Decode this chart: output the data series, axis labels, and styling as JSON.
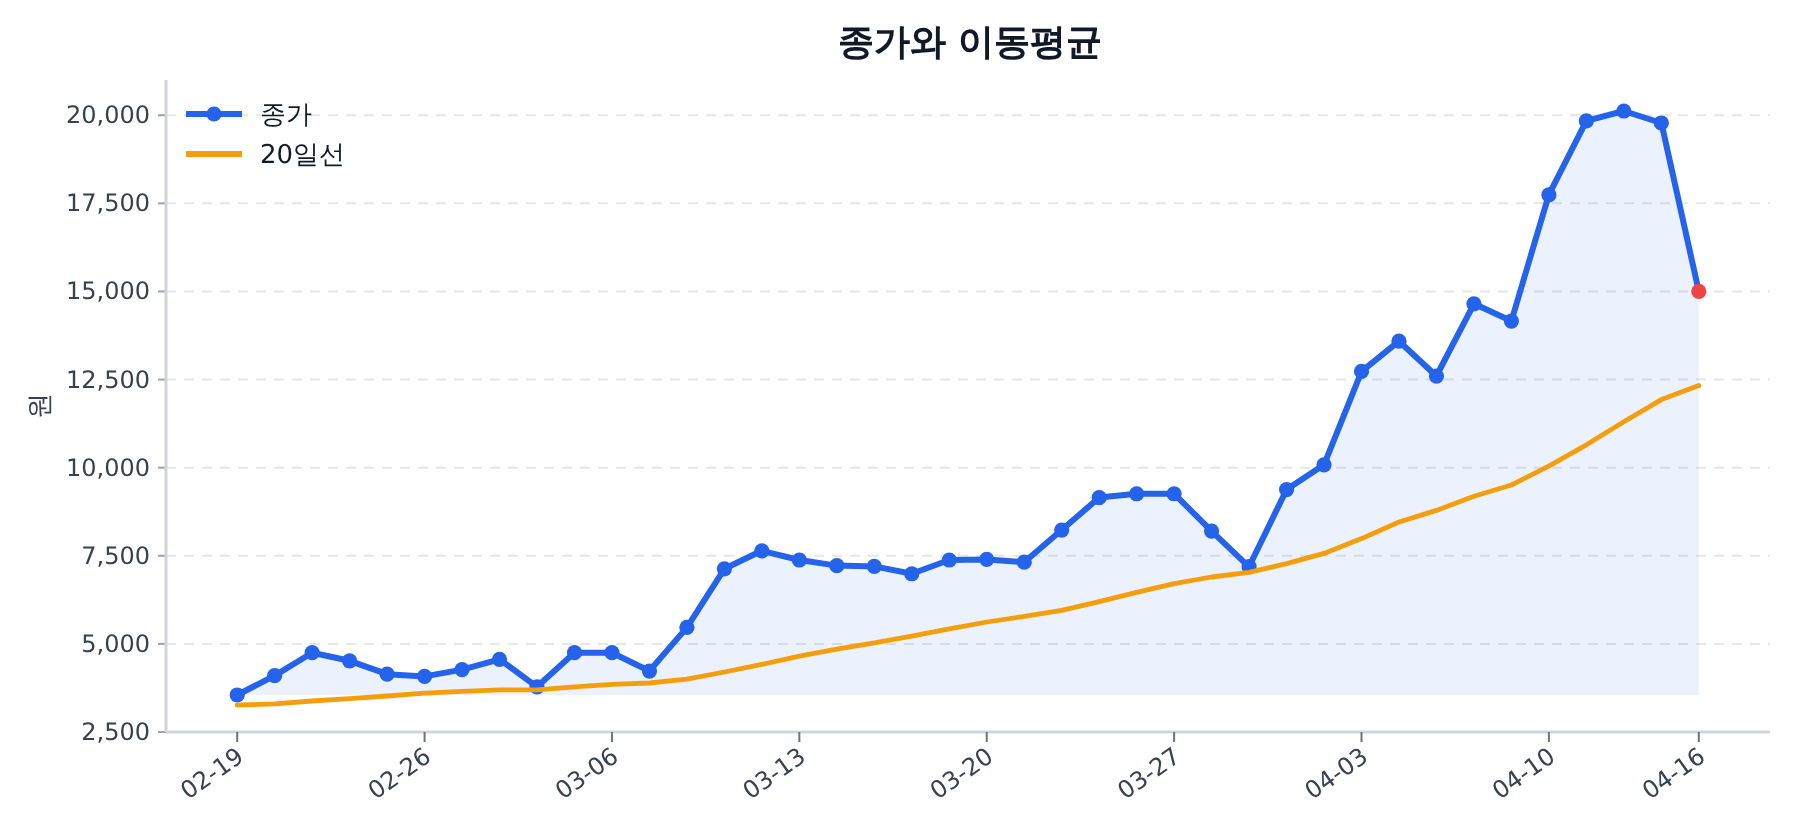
{
  "chart_data": {
    "type": "line",
    "title": "종가와 이동평균",
    "ylabel": "원",
    "categories": [
      "02-19",
      null,
      null,
      null,
      null,
      "02-26",
      null,
      null,
      null,
      null,
      "03-06",
      null,
      null,
      null,
      null,
      "03-13",
      null,
      null,
      null,
      null,
      "03-20",
      null,
      null,
      null,
      null,
      "03-27",
      null,
      null,
      null,
      null,
      "04-03",
      null,
      null,
      null,
      null,
      "04-10",
      null,
      null,
      null,
      "04-16"
    ],
    "series": [
      {
        "name": "종가",
        "type": "area",
        "color": "#2563eb",
        "marker": "circle",
        "values": [
          3550,
          4100,
          4750,
          4520,
          4140,
          4080,
          4270,
          4560,
          3780,
          4750,
          4750,
          4230,
          5470,
          7130,
          7640,
          7380,
          7220,
          7200,
          6990,
          7380,
          7400,
          7320,
          8230,
          9150,
          9260,
          9260,
          8200,
          7190,
          9380,
          10080,
          12730,
          13590,
          12600,
          14650,
          14160,
          17740,
          19840,
          20120,
          19780,
          15000
        ],
        "colors": [
          "#2563eb",
          "#2563eb",
          "#2563eb",
          "#2563eb",
          "#2563eb",
          "#2563eb",
          "#2563eb",
          "#2563eb",
          "#2563eb",
          "#2563eb",
          "#2563eb",
          "#2563eb",
          "#2563eb",
          "#2563eb",
          "#2563eb",
          "#2563eb",
          "#2563eb",
          "#2563eb",
          "#2563eb",
          "#2563eb",
          "#2563eb",
          "#2563eb",
          "#2563eb",
          "#2563eb",
          "#2563eb",
          "#2563eb",
          "#2563eb",
          "#2563eb",
          "#2563eb",
          "#2563eb",
          "#2563eb",
          "#2563eb",
          "#2563eb",
          "#2563eb",
          "#2563eb",
          "#2563eb",
          "#2563eb",
          "#2563eb",
          "#2563eb",
          "#ef4444"
        ]
      },
      {
        "name": "20일선",
        "type": "line",
        "color": "#f59e0b",
        "marker": "none",
        "values": [
          3260,
          3300,
          3380,
          3450,
          3520,
          3600,
          3650,
          3700,
          3700,
          3780,
          3850,
          3890,
          4000,
          4200,
          4420,
          4650,
          4850,
          5030,
          5220,
          5430,
          5620,
          5780,
          5950,
          6200,
          6460,
          6710,
          6900,
          7030,
          7280,
          7570,
          7990,
          8460,
          8790,
          9190,
          9510,
          10040,
          10650,
          11300,
          11930,
          12330
        ]
      }
    ],
    "ylim": [
      2500,
      21000
    ],
    "yticks": [
      {
        "value": 2500,
        "label": "2,500"
      },
      {
        "value": 5000,
        "label": "5,000"
      },
      {
        "value": 7500,
        "label": "7,500"
      },
      {
        "value": 10000,
        "label": "10,000"
      },
      {
        "value": 12500,
        "label": "12,500"
      },
      {
        "value": 15000,
        "label": "15,000"
      },
      {
        "value": 17500,
        "label": "17,500"
      },
      {
        "value": 20000,
        "label": "20,000"
      }
    ],
    "grid": "y",
    "legend": "top left",
    "line_style": "solid"
  }
}
